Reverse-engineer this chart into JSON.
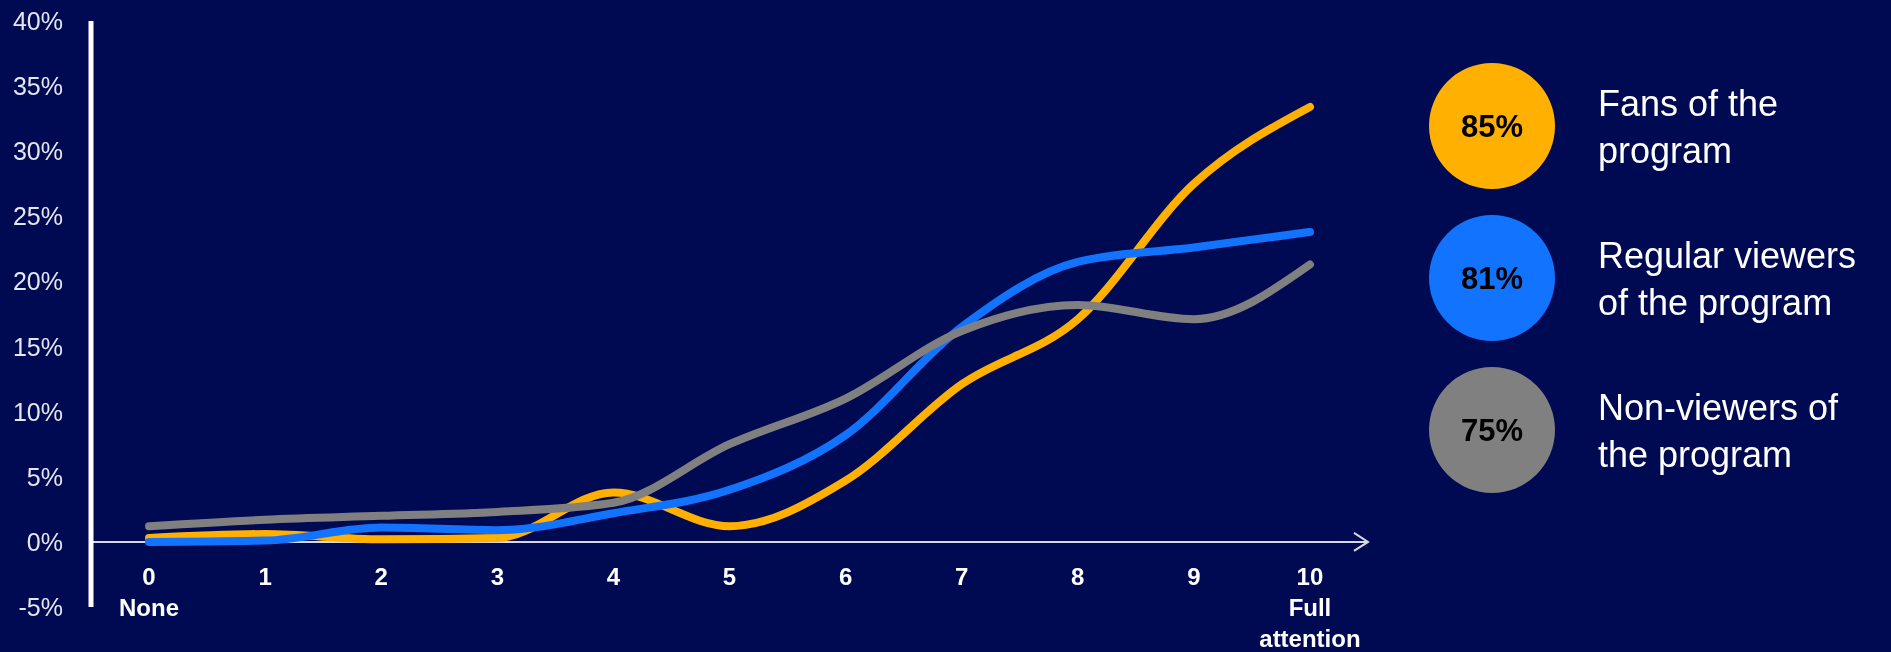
{
  "chart_data": {
    "type": "line",
    "x": [
      0,
      1,
      2,
      3,
      4,
      5,
      6,
      7,
      8,
      9,
      10
    ],
    "xlim": [
      -0.5,
      10.5
    ],
    "xticks": [
      {
        "value": 0,
        "label": "0\nNone"
      },
      1,
      2,
      3,
      4,
      5,
      6,
      7,
      8,
      9,
      {
        "value": 10,
        "label": "10\nFull\nattention"
      }
    ],
    "ylim": [
      -5,
      40
    ],
    "yticks": [
      {
        "value": -5,
        "label": "-5%"
      },
      {
        "value": 0,
        "label": "0%"
      },
      {
        "value": 5,
        "label": "5%"
      },
      {
        "value": 10,
        "label": "10%"
      },
      {
        "value": 15,
        "label": "15%"
      },
      {
        "value": 20,
        "label": "20%"
      },
      {
        "value": 25,
        "label": "25%"
      },
      {
        "value": 30,
        "label": "30%"
      },
      {
        "value": 35,
        "label": "35%"
      },
      {
        "value": 40,
        "label": "40%"
      }
    ],
    "legend": "right",
    "annotations": [
      "85%",
      "81%",
      "75%"
    ],
    "series": [
      {
        "name": "Fans of the program",
        "color": "#ffb000",
        "values": [
          0.3,
          0.6,
          0.2,
          0.3,
          3.8,
          1.2,
          4.7,
          12.1,
          17.1,
          27.5,
          33.4
        ]
      },
      {
        "name": "Regular viewers of the program",
        "color": "#1273ff",
        "values": [
          0.0,
          0.1,
          1.1,
          0.9,
          2.2,
          4.0,
          8.2,
          16.5,
          21.5,
          22.6,
          23.8
        ]
      },
      {
        "name": "Non-viewers of the program",
        "color": "#808080",
        "values": [
          1.2,
          1.7,
          2.0,
          2.3,
          3.0,
          7.5,
          11.0,
          16.2,
          18.2,
          17.1,
          21.3
        ]
      }
    ]
  }
}
